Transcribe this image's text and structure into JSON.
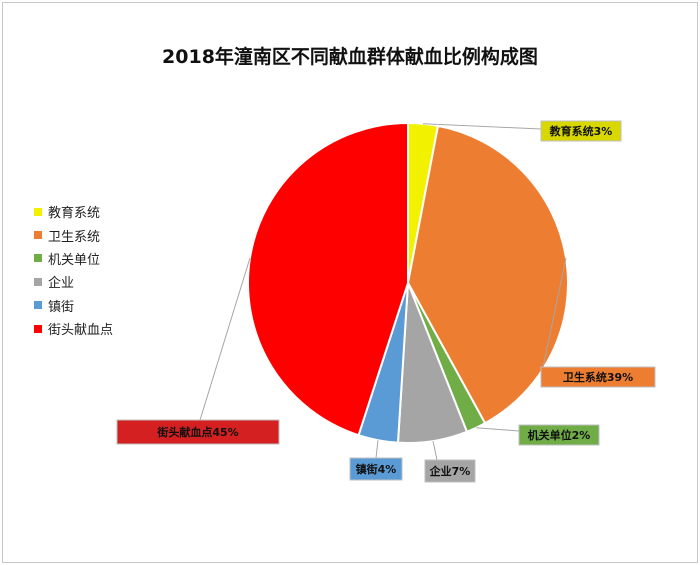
{
  "chart_data": {
    "type": "pie",
    "title": "2018年潼南区不同献血群体献血比例构成图",
    "categories": [
      "教育系统",
      "卫生系统",
      "机关单位",
      "企业",
      "镇街",
      "街头献血点"
    ],
    "values": [
      3,
      39,
      2,
      7,
      4,
      45
    ],
    "unit": "%",
    "colors": [
      "#f2f200",
      "#ed7d31",
      "#70ad47",
      "#a5a5a5",
      "#5b9bd5",
      "#ff0000"
    ],
    "data_labels": [
      "教育系统3%",
      "卫生系统39%",
      "机关单位2%",
      "企业7%",
      "镇街4%",
      "街头献血点45%"
    ],
    "label_colors": [
      "#d8d800",
      "#ed7d31",
      "#70ad47",
      "#a5a5a5",
      "#5b9bd5",
      "#d42020"
    ],
    "label_text_colors": [
      "#111111",
      "#111111",
      "#111111",
      "#111111",
      "#111111",
      "#111111"
    ],
    "legend_position": "left"
  }
}
